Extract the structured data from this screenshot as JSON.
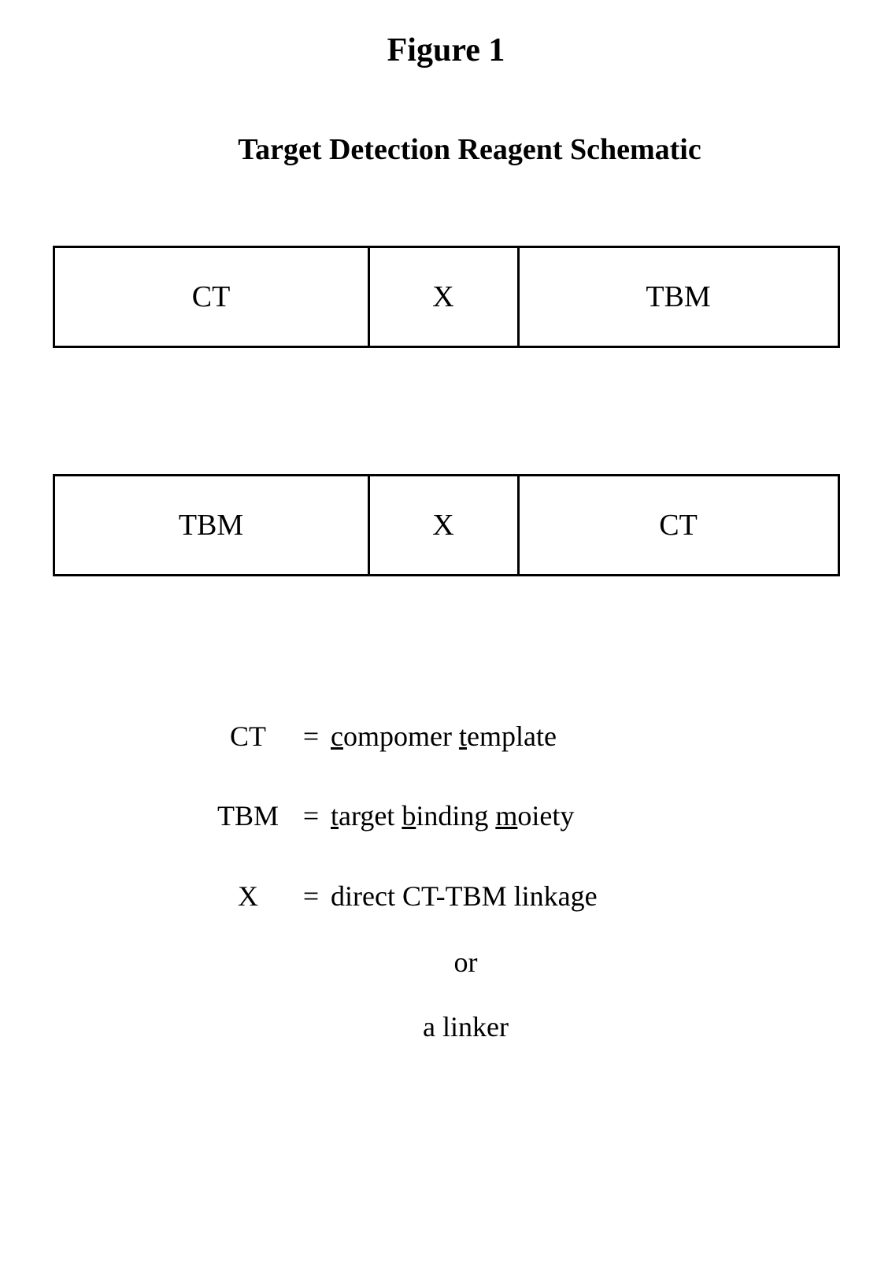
{
  "figure": {
    "title": "Figure 1",
    "subtitle": "Target Detection Reagent Schematic"
  },
  "schematic1": {
    "cells": [
      "CT",
      "X",
      "TBM"
    ],
    "widths": [
      400,
      190,
      410
    ],
    "border_color": "#000000",
    "border_width": 3,
    "height": 130,
    "font_size": 38,
    "background_color": "#ffffff"
  },
  "schematic2": {
    "cells": [
      "TBM",
      "X",
      "CT"
    ],
    "widths": [
      400,
      190,
      410
    ],
    "border_color": "#000000",
    "border_width": 3,
    "height": 130,
    "font_size": 38,
    "background_color": "#ffffff"
  },
  "legend": {
    "entries": [
      {
        "term": "CT",
        "eq": "=",
        "def_parts": [
          {
            "u": "c"
          },
          {
            "t": "ompomer "
          },
          {
            "u": "t"
          },
          {
            "t": "emplate"
          }
        ]
      },
      {
        "term": "TBM",
        "eq": "=",
        "def_parts": [
          {
            "u": "t"
          },
          {
            "t": "arget "
          },
          {
            "u": "b"
          },
          {
            "t": "inding "
          },
          {
            "u": "m"
          },
          {
            "t": "oiety"
          }
        ]
      },
      {
        "term": "X",
        "eq": "=",
        "def_parts": [
          {
            "t": "direct CT-TBM linkage"
          }
        ]
      }
    ],
    "or_text": "or",
    "linker_text": "a linker",
    "font_size": 36
  },
  "colors": {
    "text": "#000000",
    "background": "#ffffff",
    "border": "#000000"
  },
  "typography": {
    "font_family": "Times New Roman",
    "title_fontsize": 42,
    "subtitle_fontsize": 38,
    "cell_fontsize": 38,
    "legend_fontsize": 36
  }
}
